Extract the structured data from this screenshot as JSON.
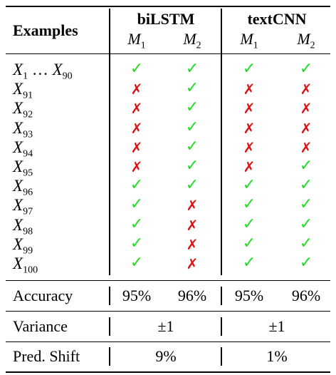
{
  "header": {
    "examples": "Examples",
    "group1": "biLSTM",
    "group2": "textCNN",
    "models": [
      {
        "base": "M",
        "sub": "1"
      },
      {
        "base": "M",
        "sub": "2"
      },
      {
        "base": "M",
        "sub": "1"
      },
      {
        "base": "M",
        "sub": "2"
      }
    ]
  },
  "symbols": {
    "correct": "✓",
    "wrong": "✗"
  },
  "rows": [
    {
      "label": "X",
      "sub": "1",
      "range": true,
      "dots": " … ",
      "label2": "X",
      "sub2": "90",
      "marks": [
        1,
        1,
        1,
        1
      ]
    },
    {
      "label": "X",
      "sub": "91",
      "marks": [
        0,
        1,
        0,
        0
      ]
    },
    {
      "label": "X",
      "sub": "92",
      "marks": [
        0,
        1,
        0,
        0
      ]
    },
    {
      "label": "X",
      "sub": "93",
      "marks": [
        0,
        1,
        0,
        0
      ]
    },
    {
      "label": "X",
      "sub": "94",
      "marks": [
        0,
        1,
        0,
        0
      ]
    },
    {
      "label": "X",
      "sub": "95",
      "marks": [
        0,
        1,
        0,
        1
      ]
    },
    {
      "label": "X",
      "sub": "96",
      "marks": [
        1,
        1,
        1,
        1
      ]
    },
    {
      "label": "X",
      "sub": "97",
      "marks": [
        1,
        0,
        1,
        1
      ]
    },
    {
      "label": "X",
      "sub": "98",
      "marks": [
        1,
        0,
        1,
        1
      ]
    },
    {
      "label": "X",
      "sub": "99",
      "marks": [
        1,
        0,
        1,
        1
      ]
    },
    {
      "label": "X",
      "sub": "100",
      "marks": [
        1,
        0,
        1,
        1
      ]
    }
  ],
  "accuracy": {
    "label": "Accuracy",
    "values": [
      "95%",
      "96%",
      "95%",
      "96%"
    ]
  },
  "variance": {
    "label": "Variance",
    "values": [
      "±1",
      "±1"
    ]
  },
  "shift": {
    "label": "Pred. Shift",
    "values": [
      "9%",
      "1%"
    ]
  }
}
